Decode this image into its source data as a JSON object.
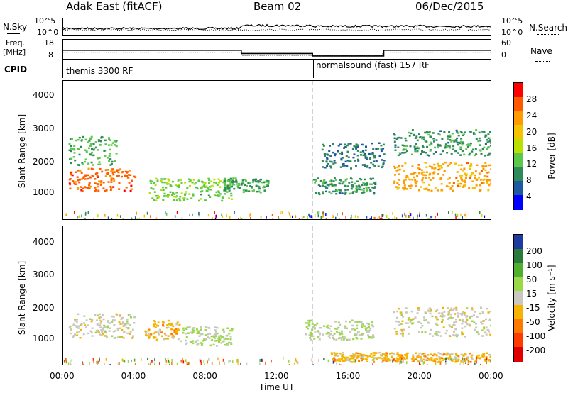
{
  "header": {
    "title": "Adak East (fitACF)",
    "beam": "Beam 02",
    "date": "06/Dec/2015"
  },
  "nsky_panel": {
    "left_label": "N.Sky",
    "left_ticks": [
      "10^5",
      "10^0"
    ],
    "right_ticks": [
      "10^5",
      "10^0"
    ],
    "right_label": "N.Search"
  },
  "freq_panel": {
    "left_label_line1": "Freq.",
    "left_label_line2": "[MHz]",
    "left_ticks": [
      "18",
      "8"
    ],
    "right_ticks": [
      "60",
      "0"
    ],
    "right_label": "Nave"
  },
  "cpid_panel": {
    "label": "CPID",
    "modes": [
      "themis 3300 RF",
      "normalsound (fast) 157 RF"
    ]
  },
  "power_panel": {
    "ylabel": "Slant Range [km]",
    "yticks": [
      "4000",
      "3000",
      "2000",
      "1000"
    ],
    "colorbar_label": "Power [dB]",
    "colorbar_ticks": [
      "28",
      "24",
      "20",
      "16",
      "12",
      "8",
      "4"
    ],
    "colorbar_colors": [
      "#ff0000",
      "#ff5a00",
      "#ff9a00",
      "#f5c400",
      "#b9e000",
      "#5cc84a",
      "#2f8a5a",
      "#1e5aa0",
      "#0000ff"
    ]
  },
  "velocity_panel": {
    "ylabel": "Slant Range [km]",
    "yticks": [
      "4000",
      "3000",
      "2000",
      "1000"
    ],
    "colorbar_label": "Velocity [m s⁻¹]",
    "colorbar_ticks": [
      "200",
      "100",
      "50",
      "15",
      "-15",
      "-50",
      "-100",
      "-200"
    ],
    "colorbar_colors": [
      "#1e3ca0",
      "#2a7a3a",
      "#4fb030",
      "#9ad84a",
      "#c8c8c0",
      "#f5b400",
      "#ff7800",
      "#ff3c00",
      "#e00000"
    ]
  },
  "x_axis": {
    "ticks": [
      "00:00",
      "04:00",
      "08:00",
      "12:00",
      "16:00",
      "20:00",
      "00:00"
    ],
    "label": "Time UT"
  },
  "chart_data": [
    {
      "type": "line",
      "name": "nsky_nsearch",
      "x_range_hours": [
        0,
        24
      ],
      "note_series": [
        "N.Sky",
        "N.Search"
      ]
    },
    {
      "type": "line",
      "name": "freq_nave",
      "x_range_hours": [
        0,
        24
      ],
      "freq_mhz": {
        "x": [
          0,
          10,
          10,
          14,
          14,
          18,
          18,
          24
        ],
        "y": [
          12.5,
          12.5,
          10.8,
          10.8,
          9.5,
          9.5,
          12.5,
          12.5
        ]
      },
      "nave": {
        "x": [
          0,
          10,
          14,
          18,
          24
        ],
        "y": [
          22,
          22,
          12,
          22,
          22
        ]
      }
    },
    {
      "type": "heatmap",
      "name": "power",
      "x_range_hours": [
        0,
        24
      ],
      "ylim": [
        200,
        4500
      ],
      "clim": [
        0,
        30
      ],
      "features": [
        {
          "x": [
            0.3,
            4.0
          ],
          "y": [
            1100,
            1800
          ],
          "value": 26
        },
        {
          "x": [
            0.3,
            3.0
          ],
          "y": [
            1900,
            2800
          ],
          "value": 10
        },
        {
          "x": [
            4.8,
            9.5
          ],
          "y": [
            800,
            1500
          ],
          "value": 12
        },
        {
          "x": [
            9.0,
            11.5
          ],
          "y": [
            1050,
            1500
          ],
          "value": 9
        },
        {
          "x": [
            14.0,
            17.5
          ],
          "y": [
            1000,
            1500
          ],
          "value": 8
        },
        {
          "x": [
            14.5,
            18.0
          ],
          "y": [
            1800,
            2600
          ],
          "value": 6
        },
        {
          "x": [
            18.5,
            24.0
          ],
          "y": [
            1100,
            2000
          ],
          "value": 22
        },
        {
          "x": [
            18.5,
            24.0
          ],
          "y": [
            2200,
            3000
          ],
          "value": 8
        }
      ]
    },
    {
      "type": "heatmap",
      "name": "velocity",
      "x_range_hours": [
        0,
        24
      ],
      "ylim": [
        200,
        4500
      ],
      "clim": [
        -250,
        250
      ],
      "features": [
        {
          "x": [
            0.3,
            4.0
          ],
          "y": [
            1050,
            1800
          ],
          "value": 0
        },
        {
          "x": [
            4.5,
            6.5
          ],
          "y": [
            1000,
            1600
          ],
          "value": -60
        },
        {
          "x": [
            6.5,
            9.5
          ],
          "y": [
            800,
            1400
          ],
          "value": 30
        },
        {
          "x": [
            13.5,
            17.5
          ],
          "y": [
            1000,
            1600
          ],
          "value": 30
        },
        {
          "x": [
            15.0,
            24.0
          ],
          "y": [
            300,
            600
          ],
          "value": -60
        },
        {
          "x": [
            18.5,
            24.0
          ],
          "y": [
            1100,
            2000
          ],
          "value": 0
        }
      ]
    }
  ]
}
